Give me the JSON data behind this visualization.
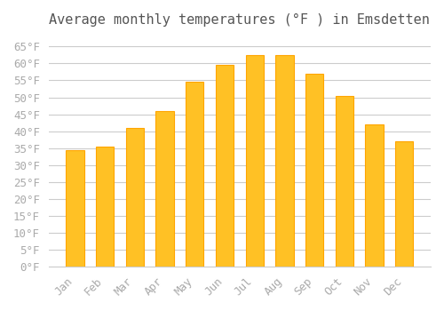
{
  "title": "Average monthly temperatures (°F ) in Emsdetten",
  "months": [
    "Jan",
    "Feb",
    "Mar",
    "Apr",
    "May",
    "Jun",
    "Jul",
    "Aug",
    "Sep",
    "Oct",
    "Nov",
    "Dec"
  ],
  "values": [
    34.5,
    35.5,
    41.0,
    46.0,
    54.5,
    59.5,
    62.5,
    62.5,
    57.0,
    50.5,
    42.0,
    37.0
  ],
  "bar_color_face": "#FFC125",
  "bar_color_edge": "#FFA500",
  "background_color": "#FFFFFF",
  "grid_color": "#CCCCCC",
  "ytick_step": 5,
  "ylim": [
    0,
    68
  ],
  "title_fontsize": 11,
  "tick_fontsize": 9,
  "tick_color": "#AAAAAA",
  "title_color": "#555555"
}
